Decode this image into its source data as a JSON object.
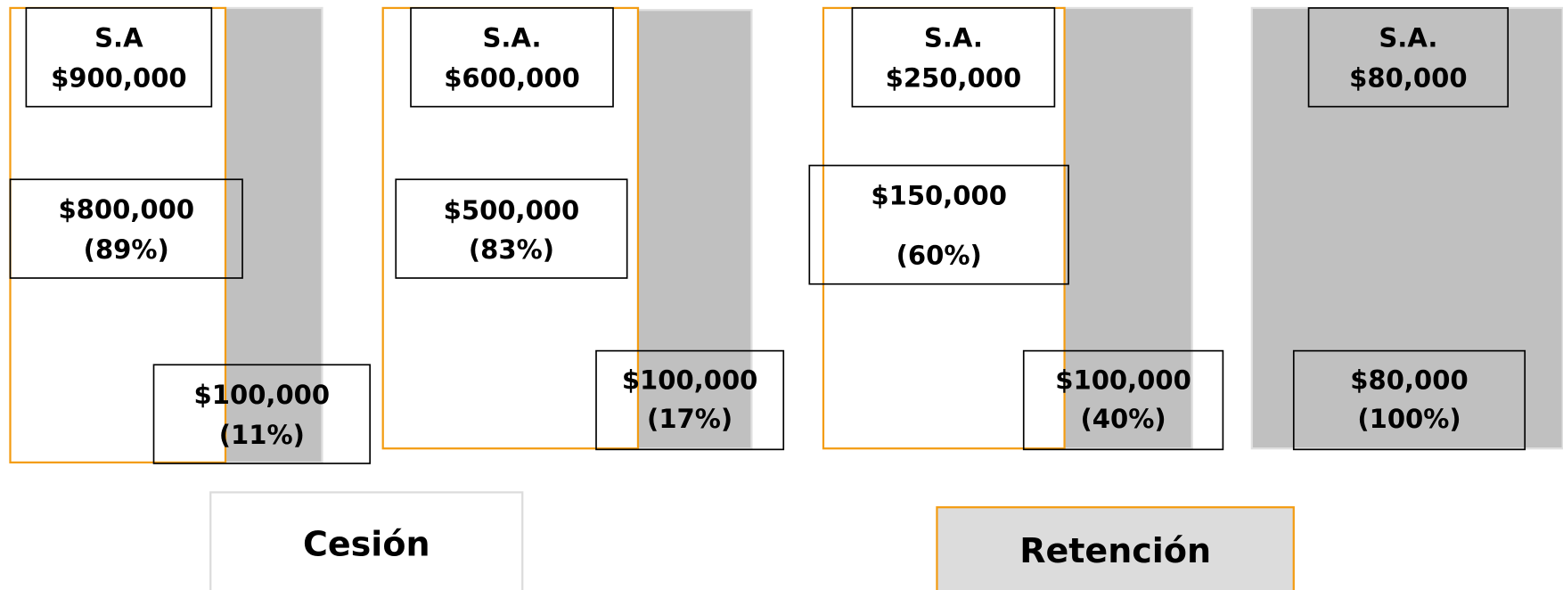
{
  "groups": [
    {
      "sa": {
        "label": "S.A",
        "amount": "$900,000"
      },
      "ceded": {
        "amount": "$800,000",
        "percent": "(89%)"
      },
      "retained": {
        "amount": "$100,000",
        "percent": "(11%)"
      }
    },
    {
      "sa": {
        "label": "S.A.",
        "amount": "$600,000"
      },
      "ceded": {
        "amount": "$500,000",
        "percent": "(83%)"
      },
      "retained": {
        "amount": "$100,000",
        "percent": "(17%)"
      }
    },
    {
      "sa": {
        "label": "S.A.",
        "amount": "$250,000"
      },
      "ceded": {
        "amount": "$150,000",
        "percent": "(60%)"
      },
      "retained": {
        "amount": "$100,000",
        "percent": "(40%)"
      }
    },
    {
      "sa": {
        "label": "S.A.",
        "amount": "$80,000"
      },
      "retained": {
        "amount": "$80,000",
        "percent": "(100%)"
      }
    }
  ],
  "legend": {
    "cession": "Cesión",
    "retention": "Retención"
  }
}
